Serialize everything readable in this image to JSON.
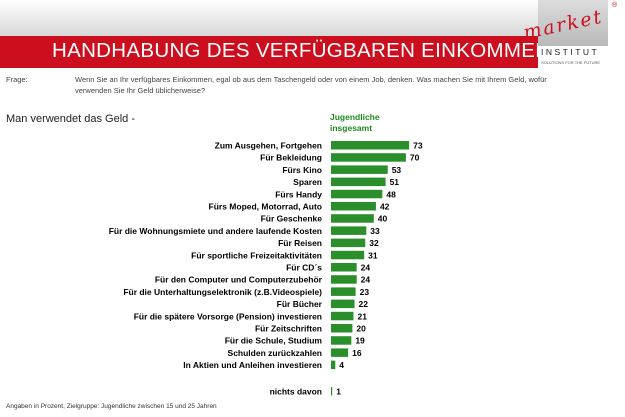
{
  "header": {
    "title": "HANDHABUNG DES VERFÜGBAREN EINKOMMENS"
  },
  "logo": {
    "word": "market",
    "registered": "®",
    "institut": "INSTITUT",
    "tagline": "SOLUTIONS FOR THE FUTURE"
  },
  "question": {
    "label": "Frage:",
    "text": "Wenn Sie an Ihr verfügbares Einkommen, egal ob aus dem Taschengeld oder von einem Job, denken. Was machen Sie mit Ihrem Geld, wofür verwenden Sie Ihr Geld üblicherweise?"
  },
  "subheading": "Man verwendet das Geld -",
  "footnote": "Angaben in Prozent, Zielgruppe: Jugendliche zwischen 15 und 25 Jahren",
  "colors": {
    "title_band": "#cc0f1f",
    "bar": "#2a8f2a",
    "header_text": "#1e8a1e"
  },
  "chart_data": {
    "type": "bar",
    "orientation": "horizontal",
    "series": [
      {
        "name": "Jugendliche insgesamt",
        "values": [
          73,
          70,
          53,
          51,
          48,
          42,
          40,
          33,
          32,
          31,
          24,
          24,
          23,
          22,
          21,
          20,
          19,
          16,
          4
        ]
      }
    ],
    "categories": [
      "Zum Ausgehen, Fortgehen",
      "Für Bekleidung",
      "Fürs Kino",
      "Sparen",
      "Fürs Handy",
      "Fürs Moped, Motorrad, Auto",
      "Für Geschenke",
      "Für die Wohnungsmiete und andere laufende Kosten",
      "Für Reisen",
      "Für sportliche Freizeitaktivitäten",
      "Für CD´s",
      "Für den Computer und Computerzubehör",
      "Für die Unterhaltungselektronik (z.B.Videospiele)",
      "Für Bücher",
      "Für die spätere Vorsorge (Pension) investieren",
      "Für Zeitschriften",
      "Für die Schule, Studium",
      "Schulden zurückzahlen",
      "In Aktien und Anleihen investieren"
    ],
    "extra": {
      "label": "nichts davon",
      "value": 1
    },
    "value_labels": true,
    "unit": "Prozent"
  }
}
